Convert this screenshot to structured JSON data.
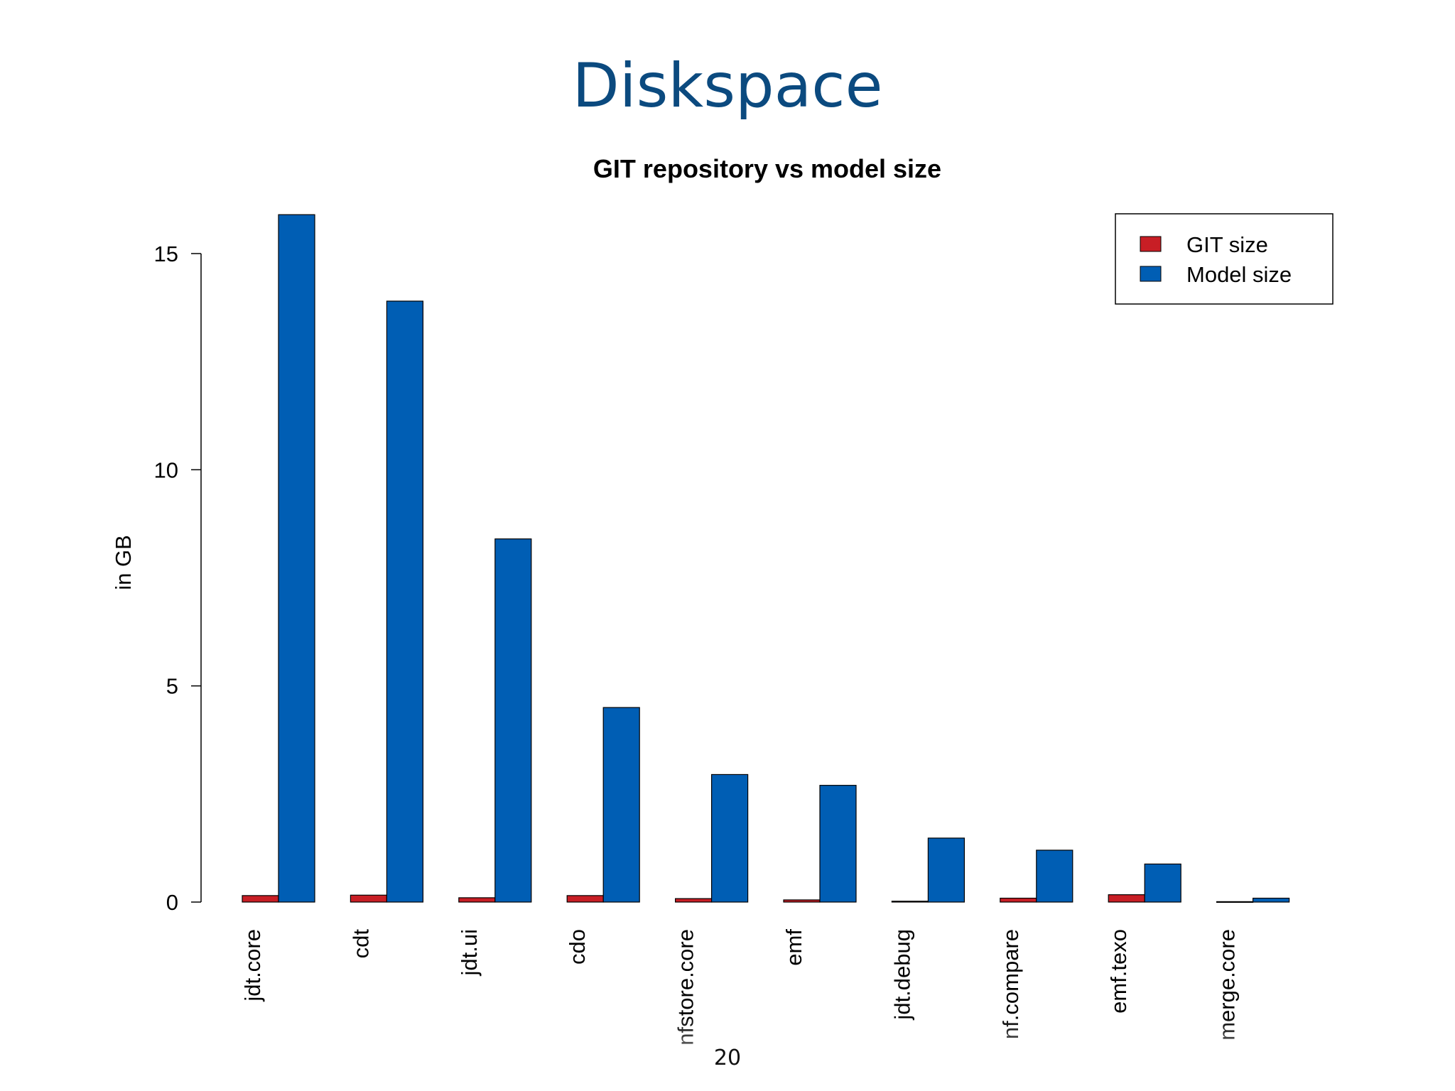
{
  "slide": {
    "title": "Diskspace",
    "page_number": "20"
  },
  "colors": {
    "title": "#0b4a7f",
    "git": "#c81e25",
    "model": "#005eb4"
  },
  "chart_data": {
    "type": "bar",
    "title": "GIT repository vs model size",
    "xlabel": "",
    "ylabel": "in GB",
    "ylim": [
      0,
      16.2
    ],
    "yticks": [
      0,
      5,
      10,
      15
    ],
    "grid": false,
    "legend_position": "top-right",
    "categories": [
      "jdt.core",
      "cdt",
      "jdt.ui",
      "cdo",
      "nfstore.core",
      "emf",
      "jdt.debug",
      "nf.compare",
      "emf.texo",
      "merge.core"
    ],
    "series": [
      {
        "name": "GIT size",
        "color": "#c81e25",
        "values": [
          0.15,
          0.16,
          0.1,
          0.15,
          0.08,
          0.05,
          0.02,
          0.09,
          0.17,
          0.01
        ]
      },
      {
        "name": "Model size",
        "color": "#005eb4",
        "values": [
          15.9,
          13.9,
          8.4,
          4.5,
          2.95,
          2.7,
          1.48,
          1.2,
          0.88,
          0.09
        ]
      }
    ]
  }
}
